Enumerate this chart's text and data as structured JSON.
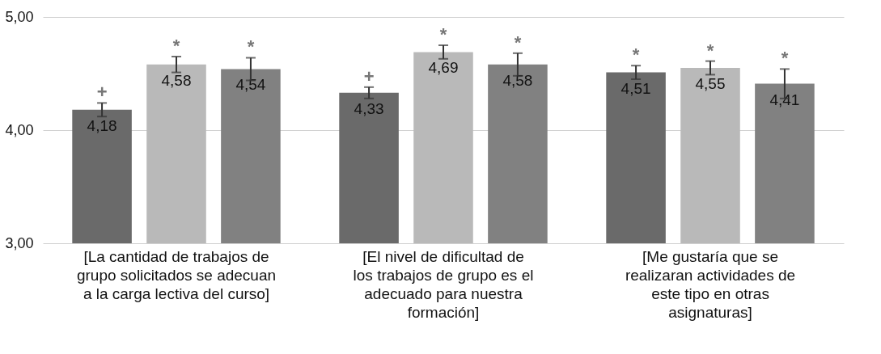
{
  "chart_data": {
    "type": "bar",
    "categories": [
      "[La cantidad de trabajos de grupo solicitados se adecuan a la carga lectiva del curso]",
      "[El nivel de dificultad de los trabajos de grupo es el adecuado para nuestra formación]",
      "[Me gustaría que se realizaran actividades de este tipo en otras asignaturas]"
    ],
    "series": [
      {
        "color": "#6a6a6a",
        "values": [
          4.18,
          4.33,
          4.51
        ],
        "errors": [
          0.06,
          0.05,
          0.06
        ],
        "value_labels": [
          "4,18",
          "4,33",
          "4,51"
        ]
      },
      {
        "color": "#b9b9b9",
        "values": [
          4.58,
          4.69,
          4.55
        ],
        "errors": [
          0.07,
          0.06,
          0.06
        ],
        "value_labels": [
          "4,58",
          "4,69",
          "4,55"
        ]
      },
      {
        "color": "#818181",
        "values": [
          4.54,
          4.58,
          4.41
        ],
        "errors": [
          0.1,
          0.1,
          0.13
        ],
        "value_labels": [
          "4,54",
          "4,58",
          "4,41"
        ]
      }
    ],
    "ylim": [
      3,
      5
    ],
    "yticks": [
      {
        "value": 3,
        "label": "3,00"
      },
      {
        "value": 4,
        "label": "4,00"
      },
      {
        "value": 5,
        "label": "5,00"
      }
    ],
    "grid": "y",
    "legend": false,
    "annotations": [
      "+",
      "*",
      "*",
      "+",
      "*",
      "*",
      "*",
      "*",
      "*"
    ]
  }
}
